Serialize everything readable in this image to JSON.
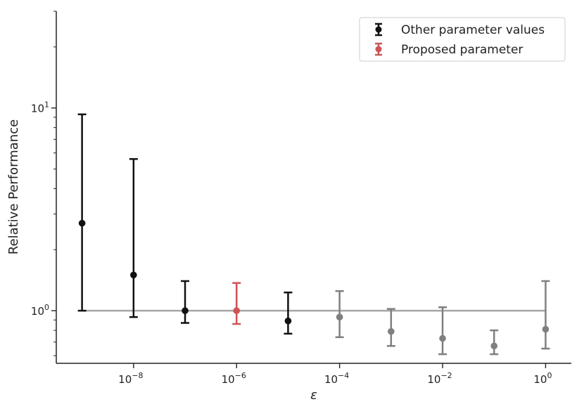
{
  "chart_data": {
    "type": "scatter",
    "title": "",
    "xlabel": "ε",
    "ylabel": "Relative Performance",
    "xscale": "log",
    "yscale": "log",
    "xlim": [
      3.16e-10,
      3.16
    ],
    "ylim": [
      0.55,
      30
    ],
    "x_ticks": [
      {
        "value": 1e-08,
        "base": "10",
        "exp": "−8"
      },
      {
        "value": 1e-06,
        "base": "10",
        "exp": "−6"
      },
      {
        "value": 0.0001,
        "base": "10",
        "exp": "−4"
      },
      {
        "value": 0.01,
        "base": "10",
        "exp": "−2"
      },
      {
        "value": 1,
        "base": "10",
        "exp": "0"
      }
    ],
    "y_ticks": [
      {
        "value": 1,
        "base": "10",
        "exp": "0"
      },
      {
        "value": 10,
        "base": "10",
        "exp": "1"
      }
    ],
    "reference_line": {
      "y": 1.0,
      "x_range": [
        1e-09,
        1
      ],
      "color": "#a6a6a6"
    },
    "legend": {
      "position": "top-right",
      "entries": [
        {
          "label": "Other parameter values",
          "color": "#111111"
        },
        {
          "label": "Proposed parameter",
          "color": "#cd5555"
        }
      ]
    },
    "series": [
      {
        "name": "Other parameter values",
        "color": "#111111",
        "points": [
          {
            "x": 1e-09,
            "y": 2.7,
            "ylow": 1.0,
            "yhigh": 9.3
          },
          {
            "x": 1e-08,
            "y": 1.5,
            "ylow": 0.93,
            "yhigh": 5.6
          },
          {
            "x": 1e-07,
            "y": 1.0,
            "ylow": 0.87,
            "yhigh": 1.4
          },
          {
            "x": 1e-05,
            "y": 0.89,
            "ylow": 0.77,
            "yhigh": 1.23
          }
        ]
      },
      {
        "name": "Proposed parameter",
        "color": "#cd5555",
        "points": [
          {
            "x": 1e-06,
            "y": 1.0,
            "ylow": 0.86,
            "yhigh": 1.37
          }
        ]
      },
      {
        "name": "",
        "color": "#7f7f7f",
        "points": [
          {
            "x": 0.0001,
            "y": 0.93,
            "ylow": 0.74,
            "yhigh": 1.25
          },
          {
            "x": 0.001,
            "y": 0.79,
            "ylow": 0.67,
            "yhigh": 1.02
          },
          {
            "x": 0.01,
            "y": 0.73,
            "ylow": 0.61,
            "yhigh": 1.04
          },
          {
            "x": 0.1,
            "y": 0.67,
            "ylow": 0.61,
            "yhigh": 0.8
          },
          {
            "x": 1,
            "y": 0.81,
            "ylow": 0.65,
            "yhigh": 1.4
          }
        ]
      }
    ]
  }
}
